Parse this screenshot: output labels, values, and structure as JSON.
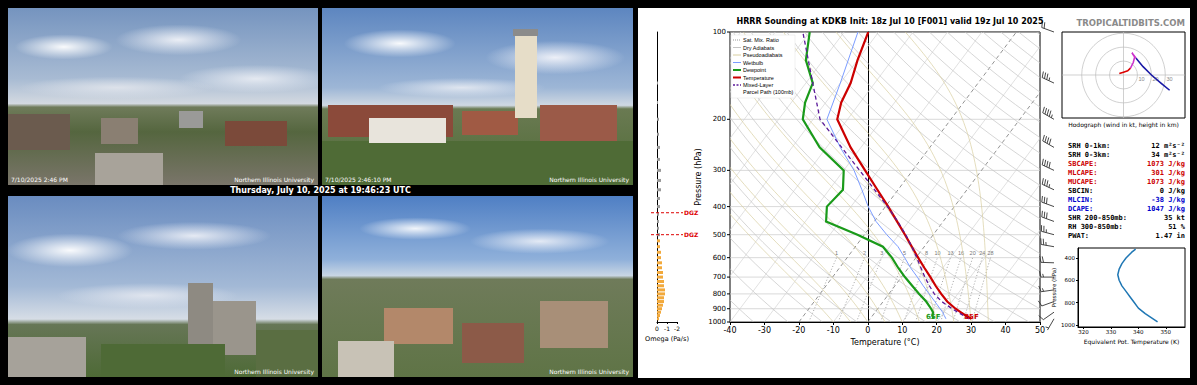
{
  "webcams": {
    "caption": "Thursday, July 10, 2025 at 19:46:23 UTC",
    "frames": [
      {
        "timestamp": "7/10/2025 2:46 PM",
        "watermark": "Northern Illinois University"
      },
      {
        "timestamp": "7/10/2025 2:46:10 PM",
        "watermark": "Northern Illinois University"
      },
      {
        "watermark": "Northern Illinois University"
      },
      {
        "watermark": "Northern Illinois University"
      }
    ]
  },
  "site": "TROPICALTIDBITS.COM",
  "indices": [
    {
      "label": "SRH 0-1km:",
      "value": "12 m²s⁻²",
      "color": "#000000"
    },
    {
      "label": "SRH 0-3km:",
      "value": "34 m²s⁻²",
      "color": "#000000"
    },
    {
      "label": "SBCAPE:",
      "value": "1073 J/kg",
      "color": "#cc0000"
    },
    {
      "label": "MLCAPE:",
      "value": "301 J/kg",
      "color": "#cc0000"
    },
    {
      "label": "MUCAPE:",
      "value": "1073 J/kg",
      "color": "#cc0000"
    },
    {
      "label": "SBCIN:",
      "value": "0 J/kg",
      "color": "#000000"
    },
    {
      "label": "MLCIN:",
      "value": "-38 J/kg",
      "color": "#0000cc"
    },
    {
      "label": "DCAPE:",
      "value": "1047 J/kg",
      "color": "#0000cc"
    },
    {
      "label": "SHR 200-850mb:",
      "value": "35 kt",
      "color": "#000000"
    },
    {
      "label": "RH 300-850mb:",
      "value": "51 %",
      "color": "#000000"
    },
    {
      "label": "PWAT:",
      "value": "1.47 in",
      "color": "#000000"
    }
  ],
  "chart_data": [
    {
      "type": "skewt",
      "title": "HRRR Sounding at KDKB Init: 18z Jul 10 [F001] valid 19z Jul 10 2025",
      "x_label": "Temperature (°C)",
      "y_label": "Pressure (hPa)",
      "xlim": [
        -40,
        50
      ],
      "xticks": [
        -40,
        -30,
        -20,
        -10,
        0,
        10,
        20,
        30,
        40,
        50
      ],
      "ylim": [
        1000,
        100
      ],
      "yticks": [
        1000,
        900,
        800,
        700,
        600,
        500,
        400,
        300,
        200,
        100
      ],
      "log": "y",
      "grid": true,
      "legend": "upper left",
      "isotherms": {
        "values": [
          -100,
          -90,
          -80,
          -70,
          -60,
          -50,
          -40,
          -30,
          -20,
          -10,
          0,
          10,
          20,
          30,
          40,
          50
        ],
        "dashed": [
          -20,
          0
        ]
      },
      "reference_lines": [
        {
          "name": "Sat. Mix. Ratio",
          "type": "mixing_ratio",
          "color": "#999999",
          "line_style": "dotted",
          "values": [
            1,
            2,
            3,
            5,
            8,
            10,
            13,
            16,
            20,
            24,
            28
          ],
          "plim": [
            1000,
            600
          ]
        },
        {
          "name": "Dry Adiabats",
          "type": "dry_adiabat",
          "color": "#c4c4c4",
          "line_style": "solid",
          "values": [
            240,
            250,
            260,
            270,
            280,
            290,
            300,
            310,
            320,
            330,
            340,
            350,
            360,
            370,
            380,
            390,
            400,
            410,
            420,
            430,
            440,
            450,
            460,
            470,
            480,
            490,
            500
          ]
        },
        {
          "name": "Pseudoadiabats",
          "type": "moist_adiabat",
          "color": "#d9cfa0",
          "line_style": "solid",
          "values": [
            -10,
            -5,
            0,
            5,
            10,
            15,
            20,
            25,
            30,
            35
          ]
        }
      ],
      "series": [
        {
          "name": "Wetbulb",
          "color": "#7b9cff",
          "line_style": "solid",
          "values": [
            [
              22.0,
              975
            ],
            [
              20.8,
              950
            ],
            [
              19.6,
              925
            ],
            [
              18.1,
              900
            ],
            [
              15.0,
              850
            ],
            [
              11.7,
              800
            ],
            [
              8.2,
              750
            ],
            [
              4.6,
              700
            ],
            [
              0.6,
              650
            ],
            [
              -3.3,
              600
            ],
            [
              -7.6,
              550
            ],
            [
              -13.5,
              500
            ],
            [
              -19.5,
              450
            ],
            [
              -25,
              400
            ],
            [
              -30.5,
              350
            ],
            [
              -37,
              300
            ],
            [
              -46,
              250
            ],
            [
              -56,
              200
            ],
            [
              -60,
              150
            ],
            [
              -66,
              100
            ]
          ]
        },
        {
          "name": "Dewpoint",
          "color": "#1a9a1a",
          "line_style": "thick",
          "surface_label": "65F",
          "values": [
            [
              18.3,
              975
            ],
            [
              17.4,
              950
            ],
            [
              16.8,
              925
            ],
            [
              15.5,
              900
            ],
            [
              12.5,
              850
            ],
            [
              8.8,
              800
            ],
            [
              5.0,
              750
            ],
            [
              1.0,
              700
            ],
            [
              -3.0,
              650
            ],
            [
              -7.0,
              600
            ],
            [
              -12,
              550
            ],
            [
              -22,
              500
            ],
            [
              -34,
              450
            ],
            [
              -37,
              400
            ],
            [
              -36,
              350
            ],
            [
              -40,
              300
            ],
            [
              -52,
              250
            ],
            [
              -63,
              200
            ],
            [
              -66,
              175
            ],
            [
              -68,
              150
            ],
            [
              -75,
              125
            ],
            [
              -80,
              100
            ]
          ]
        },
        {
          "name": "Temperature",
          "color": "#cc0000",
          "line_style": "thick",
          "surface_label": "85F",
          "values": [
            [
              29.4,
              975
            ],
            [
              27,
              950
            ],
            [
              24.8,
              925
            ],
            [
              22.6,
              900
            ],
            [
              18.6,
              850
            ],
            [
              15.2,
              800
            ],
            [
              11.8,
              750
            ],
            [
              8.4,
              700
            ],
            [
              4.6,
              650
            ],
            [
              0.6,
              600
            ],
            [
              -3.6,
              550
            ],
            [
              -8.2,
              500
            ],
            [
              -13.4,
              450
            ],
            [
              -19.2,
              400
            ],
            [
              -26,
              350
            ],
            [
              -33.8,
              300
            ],
            [
              -43,
              250
            ],
            [
              -53,
              200
            ],
            [
              -55.5,
              175
            ],
            [
              -57,
              150
            ],
            [
              -60,
              125
            ],
            [
              -63,
              100
            ]
          ]
        },
        {
          "name": "Mixed-Layer\nParcel Path (100mb)",
          "color": "#5b1a9a",
          "line_style": "dashed",
          "values": [
            [
              28.8,
              975
            ],
            [
              26.4,
              950
            ],
            [
              24.0,
              925
            ],
            [
              21.6,
              900
            ],
            [
              17.0,
              850
            ],
            [
              13.2,
              800
            ],
            [
              10.0,
              750
            ],
            [
              6.8,
              700
            ],
            [
              3.6,
              650
            ],
            [
              0.2,
              600
            ],
            [
              -3.6,
              550
            ],
            [
              -8.0,
              500
            ],
            [
              -13.2,
              450
            ],
            [
              -19.4,
              400
            ],
            [
              -26.8,
              350
            ],
            [
              -35.4,
              300
            ],
            [
              -45.6,
              250
            ],
            [
              -58,
              200
            ],
            [
              -68,
              150
            ],
            [
              -82,
              100
            ]
          ]
        }
      ],
      "winds": {
        "pressure": [
          975,
          925,
          850,
          775,
          700,
          625,
          550,
          500,
          450,
          400,
          350,
          300,
          250,
          200,
          150,
          100
        ],
        "direction": [
          210,
          235,
          250,
          262,
          270,
          272,
          280,
          285,
          290,
          290,
          295,
          295,
          300,
          300,
          295,
          290
        ],
        "speed": [
          5,
          10,
          10,
          15,
          15,
          20,
          25,
          25,
          30,
          30,
          35,
          40,
          40,
          45,
          35,
          20
        ]
      }
    },
    {
      "type": "bar",
      "orientation": "horizontal",
      "x_label": "Omega (Pa/s)",
      "xlim": [
        0,
        -2
      ],
      "xticks": [
        0,
        -1,
        -2
      ],
      "ylim": [
        1000,
        100
      ],
      "log": "y",
      "tick_labels": "x",
      "pressure": [
        975,
        950,
        925,
        900,
        875,
        850,
        825,
        800,
        775,
        750,
        725,
        700,
        675,
        650,
        625,
        600,
        575,
        550,
        525,
        500,
        475,
        450,
        425,
        400,
        375,
        350,
        325,
        300,
        275,
        250,
        225,
        200,
        175,
        150
      ],
      "values": [
        -0.2,
        -0.3,
        -0.4,
        -0.5,
        -0.6,
        -0.7,
        -0.7,
        -0.8,
        -0.8,
        -0.7,
        -0.7,
        -0.6,
        -0.6,
        -0.5,
        -0.5,
        -0.4,
        -0.4,
        -0.3,
        -0.3,
        -0.3,
        -0.2,
        -0.2,
        -0.2,
        -0.3,
        -0.3,
        -0.4,
        -0.4,
        -0.4,
        -0.3,
        -0.3,
        -0.2,
        -0.2,
        -0.1,
        -0.1
      ],
      "colors": [
        "#f2a93b",
        "#f2a93b",
        "#f2a93b",
        "#f2a93b",
        "#f2a93b",
        "#f2a93b",
        "#f2a93b",
        "#f2a93b",
        "#f2a93b",
        "#f2a93b",
        "#f2a93b",
        "#f2a93b",
        "#f2a93b",
        "#f2a93b",
        "#f2a93b",
        "#f2a93b",
        "#f2a93b",
        "#f2a93b",
        "#f2a93b",
        "#9a9a9a",
        "#9a9a9a",
        "#9a9a9a",
        "#9a9a9a",
        "#9a9a9a",
        "#9a9a9a",
        "#9a9a9a",
        "#9a9a9a",
        "#9a9a9a",
        "#9a9a9a",
        "#9a9a9a",
        "#9a9a9a",
        "#9a9a9a",
        "#9a9a9a",
        "#9a9a9a"
      ],
      "dgz": {
        "label": "DGZ",
        "color": "#dd0000",
        "pressure": [
          420,
          500
        ]
      }
    },
    {
      "type": "hodograph",
      "title": "Hodograph (wind in kt, height in km)",
      "xlim": [
        -44,
        44
      ],
      "ylim": [
        -31,
        31
      ],
      "tick_labels": false,
      "rings": [
        10,
        20,
        30
      ],
      "series": [
        {
          "color": "#dd0000",
          "values": [
            [
              -3,
              1
            ],
            [
              0,
              2
            ],
            [
              3,
              3
            ],
            [
              5,
              5
            ]
          ]
        },
        {
          "color": "#cc33cc",
          "values": [
            [
              5,
              5
            ],
            [
              7,
              9
            ],
            [
              8,
              13
            ],
            [
              6,
              16
            ],
            [
              9,
              12
            ]
          ]
        },
        {
          "color": "#1a1aa6",
          "values": [
            [
              9,
              12
            ],
            [
              14,
              6
            ],
            [
              20,
              0
            ],
            [
              27,
              -6
            ],
            [
              33,
              -11
            ]
          ]
        }
      ]
    },
    {
      "type": "line",
      "x_label": "Equivalent Pot. Temperature (K)",
      "y_label": "Pressure (hPa)",
      "xlim": [
        318,
        357
      ],
      "xticks": [
        320,
        330,
        340,
        350
      ],
      "ylim": [
        1020,
        310
      ],
      "yticks": [
        400,
        600,
        800,
        1000
      ],
      "color": "#1f77b4",
      "values": [
        [
          347,
          975
        ],
        [
          345.5,
          950
        ],
        [
          344,
          925
        ],
        [
          342.5,
          900
        ],
        [
          340,
          850
        ],
        [
          338.5,
          800
        ],
        [
          337,
          750
        ],
        [
          335.5,
          700
        ],
        [
          334,
          650
        ],
        [
          333,
          600
        ],
        [
          332.5,
          550
        ],
        [
          333,
          500
        ],
        [
          334,
          450
        ],
        [
          335.5,
          400
        ],
        [
          337.5,
          350
        ],
        [
          339,
          320
        ]
      ]
    }
  ]
}
